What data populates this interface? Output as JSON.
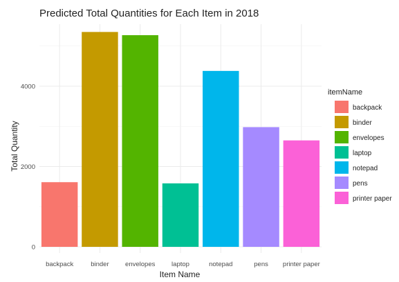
{
  "chart_data": {
    "type": "bar",
    "title": "Predicted Total Quantities for Each Item in 2018",
    "xlabel": "Item Name",
    "ylabel": "Total Quantity",
    "categories": [
      "backpack",
      "binder",
      "envelopes",
      "laptop",
      "notepad",
      "pens",
      "printer paper"
    ],
    "values": [
      1610,
      5350,
      5270,
      1580,
      4380,
      2980,
      2650
    ],
    "colors": [
      "#F8766D",
      "#C49A00",
      "#53B400",
      "#00C094",
      "#00B6EB",
      "#A58AFF",
      "#FB61D7"
    ],
    "yticks": [
      0,
      2000,
      4000
    ],
    "ylim": [
      0,
      5600
    ],
    "grid": true,
    "legend": {
      "title": "itemName",
      "position": "right",
      "entries": [
        "backpack",
        "binder",
        "envelopes",
        "laptop",
        "notepad",
        "pens",
        "printer paper"
      ]
    }
  }
}
